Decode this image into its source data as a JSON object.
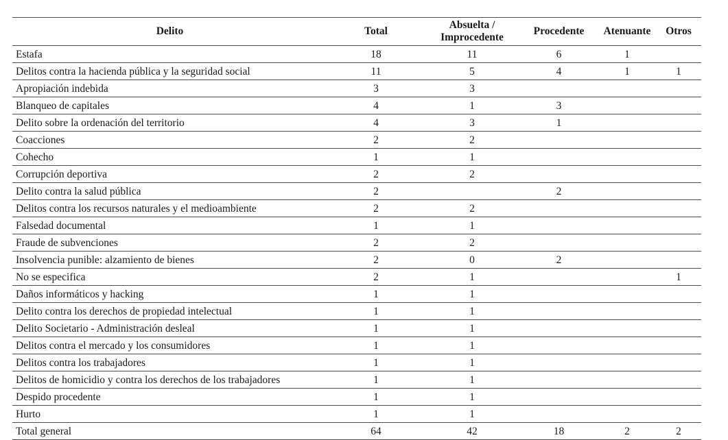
{
  "document": {
    "background": "#ffffff",
    "text_color": "#1a1a1a",
    "rule_color": "#4d4d4d"
  },
  "chart_data": {
    "type": "table",
    "title": "",
    "columns": [
      "Delito",
      "Total",
      "Absuelta / Improcedente",
      "Procedente",
      "Atenuante",
      "Otros"
    ],
    "rows": [
      [
        "Estafa",
        "18",
        "11",
        "6",
        "1",
        ""
      ],
      [
        "Delitos contra la hacienda pública y la seguridad social",
        "11",
        "5",
        "4",
        "1",
        "1"
      ],
      [
        "Apropiación indebida",
        "3",
        "3",
        "",
        "",
        ""
      ],
      [
        "Blanqueo de capitales",
        "4",
        "1",
        "3",
        "",
        ""
      ],
      [
        "Delito sobre la ordenación del territorio",
        "4",
        "3",
        "1",
        "",
        ""
      ],
      [
        "Coacciones",
        "2",
        "2",
        "",
        "",
        ""
      ],
      [
        "Cohecho",
        "1",
        "1",
        "",
        "",
        ""
      ],
      [
        "Corrupción deportiva",
        "2",
        "2",
        "",
        "",
        ""
      ],
      [
        "Delito contra la salud pública",
        "2",
        "",
        "2",
        "",
        ""
      ],
      [
        "Delitos contra los recursos naturales y el medioambiente",
        "2",
        "2",
        "",
        "",
        ""
      ],
      [
        "Falsedad documental",
        "1",
        "1",
        "",
        "",
        ""
      ],
      [
        "Fraude de subvenciones",
        "2",
        "2",
        "",
        "",
        ""
      ],
      [
        "Insolvencia punible: alzamiento de bienes",
        "2",
        "0",
        "2",
        "",
        ""
      ],
      [
        "No se especifica",
        "2",
        "1",
        "",
        "",
        "1"
      ],
      [
        "Daños informáticos y hacking",
        "1",
        "1",
        "",
        "",
        ""
      ],
      [
        "Delito contra los derechos de propiedad intelectual",
        "1",
        "1",
        "",
        "",
        ""
      ],
      [
        "Delito Societario - Administración desleal",
        "1",
        "1",
        "",
        "",
        ""
      ],
      [
        "Delitos contra el mercado y los consumidores",
        "1",
        "1",
        "",
        "",
        ""
      ],
      [
        "Delitos contra los trabajadores",
        "1",
        "1",
        "",
        "",
        ""
      ],
      [
        "Delitos de homicidio y contra los derechos de los trabajadores",
        "1",
        "1",
        "",
        "",
        ""
      ],
      [
        "Despido procedente",
        "1",
        "1",
        "",
        "",
        ""
      ],
      [
        "Hurto",
        "1",
        "1",
        "",
        "",
        ""
      ]
    ],
    "total_row": [
      "Total general",
      "64",
      "42",
      "18",
      "2",
      "2"
    ]
  },
  "table": {
    "columns": [
      {
        "key": "delito",
        "label": "Delito"
      },
      {
        "key": "total",
        "label": "Total"
      },
      {
        "key": "absuelta-improcedente",
        "label": "Absuelta / Improcedente"
      },
      {
        "key": "procedente",
        "label": "Procedente"
      },
      {
        "key": "atenuante",
        "label": "Atenuante"
      },
      {
        "key": "otros",
        "label": "Otros"
      }
    ]
  }
}
